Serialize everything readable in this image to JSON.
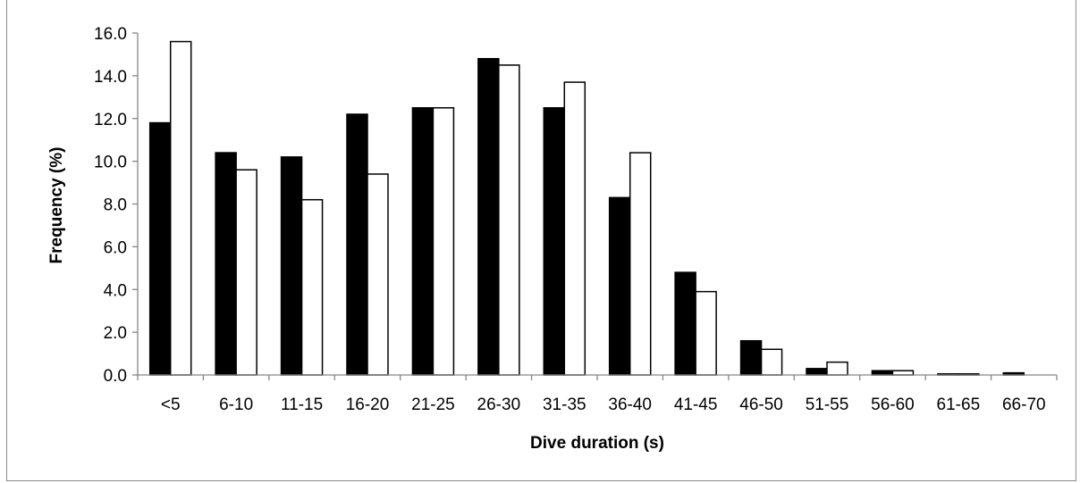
{
  "chart_data": {
    "type": "bar",
    "title": "",
    "xlabel": "Dive duration (s)",
    "ylabel": "Frequency (%)",
    "categories": [
      "<5",
      "6-10",
      "11-15",
      "16-20",
      "21-25",
      "26-30",
      "31-35",
      "36-40",
      "41-45",
      "46-50",
      "51-55",
      "56-60",
      "61-65",
      "66-70"
    ],
    "series": [
      {
        "values": [
          11.8,
          10.4,
          10.2,
          12.2,
          12.5,
          14.8,
          12.5,
          8.3,
          4.8,
          1.6,
          0.3,
          0.2,
          0.05,
          0.1
        ],
        "color": "#000000"
      },
      {
        "values": [
          15.6,
          9.6,
          8.2,
          9.4,
          12.5,
          14.5,
          13.7,
          10.4,
          3.9,
          1.2,
          0.6,
          0.2,
          0.05,
          0.0
        ],
        "color": "#ffffff"
      }
    ],
    "ylim": [
      0,
      16
    ],
    "yticks": [
      "0.0",
      "2.0",
      "4.0",
      "6.0",
      "8.0",
      "10.0",
      "12.0",
      "14.0",
      "16.0"
    ],
    "grid": false,
    "legend": "none"
  }
}
